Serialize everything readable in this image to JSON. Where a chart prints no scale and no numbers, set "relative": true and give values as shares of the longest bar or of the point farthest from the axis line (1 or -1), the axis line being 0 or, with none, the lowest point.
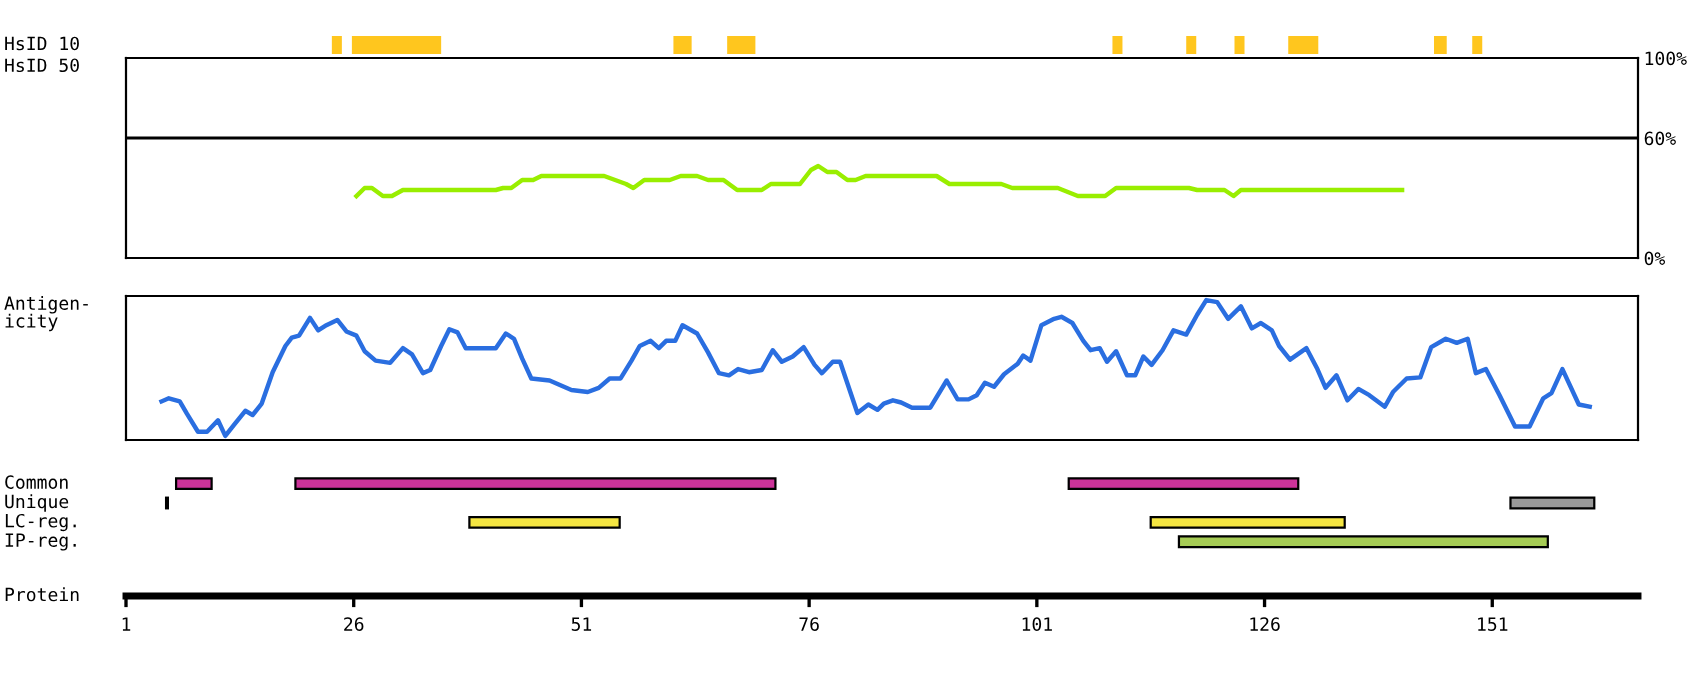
{
  "chart_data": [
    {
      "type": "bar",
      "orientation": "horizontal",
      "categories": [
        "HsID 10"
      ],
      "xlim": [
        1,
        167
      ],
      "tick_labels": false,
      "series": [
        {
          "color": "#ffc61e",
          "base": [
            23.6
          ],
          "values": [
            1.1
          ]
        },
        {
          "color": "#ffc61e",
          "base": [
            25.8
          ],
          "values": [
            9.8
          ]
        },
        {
          "color": "#ffc61e",
          "base": [
            61.1
          ],
          "values": [
            2.0
          ]
        },
        {
          "color": "#ffc61e",
          "base": [
            67.0
          ],
          "values": [
            3.1
          ]
        },
        {
          "color": "#ffc61e",
          "base": [
            109.3
          ],
          "values": [
            1.1
          ]
        },
        {
          "color": "#ffc61e",
          "base": [
            117.4
          ],
          "values": [
            1.1
          ]
        },
        {
          "color": "#ffc61e",
          "base": [
            122.7
          ],
          "values": [
            1.1
          ]
        },
        {
          "color": "#ffc61e",
          "base": [
            128.6
          ],
          "values": [
            3.3
          ]
        },
        {
          "color": "#ffc61e",
          "base": [
            144.6
          ],
          "values": [
            1.4
          ]
        },
        {
          "color": "#ffc61e",
          "base": [
            148.8
          ],
          "values": [
            1.1
          ]
        }
      ]
    },
    {
      "type": "line",
      "ylabel": "HsID 50",
      "xlim": [
        1,
        167
      ],
      "ylim": [
        0,
        100
      ],
      "tick_labels": "y",
      "yticks": [
        {
          "value": 0,
          "label": "0%"
        },
        {
          "value": 60,
          "label": "60%"
        },
        {
          "value": 100,
          "label": "100%"
        }
      ],
      "ref_lines": [
        {
          "axis": "y",
          "value": 60,
          "color": "#000000"
        }
      ],
      "series": [
        {
          "color": "#99ee00",
          "x": [
            26.3,
            27.2,
            28.0,
            29.2,
            30.2,
            31.4,
            41.6,
            42.4,
            43.3,
            44.5,
            45.7,
            46.6,
            53.5,
            55.9,
            56.7,
            57.9,
            60.7,
            61.9,
            63.7,
            64.9,
            66.6,
            68.1,
            70.8,
            71.8,
            75.0,
            76.2,
            77.0,
            78.0,
            79.0,
            80.2,
            81.1,
            82.2,
            90.0,
            91.4,
            97.1,
            98.3,
            103.3,
            105.5,
            108.5,
            109.7,
            117.7,
            118.6,
            121.6,
            122.6,
            123.4,
            141.1
          ],
          "values": [
            31,
            35,
            35,
            31,
            31,
            34,
            34,
            35,
            35,
            39,
            39,
            41,
            41,
            37,
            35,
            39,
            39,
            41,
            41,
            39,
            39,
            34,
            34,
            37,
            37,
            44,
            46,
            43,
            43,
            39,
            39,
            41,
            41,
            37,
            37,
            35,
            35,
            31,
            31,
            35,
            35,
            34,
            34,
            31,
            34,
            34
          ]
        }
      ]
    },
    {
      "type": "line",
      "ylabel": "Antigen-\nicity",
      "xlim": [
        1,
        167
      ],
      "relative": true,
      "tick_labels": false,
      "series": [
        {
          "color": "#2a6ee0",
          "x": [
            4.9,
            5.7,
            6.9,
            7.7,
            8.9,
            9.9,
            11.1,
            11.9,
            12.9,
            14.1,
            14.9,
            15.9,
            17.1,
            18.5,
            19.2,
            20.0,
            21.2,
            22.1,
            23.0,
            24.2,
            25.2,
            26.3,
            27.2,
            28.4,
            30.0,
            31.4,
            32.4,
            33.6,
            34.4,
            35.6,
            36.5,
            37.4,
            38.3,
            41.6,
            42.7,
            43.6,
            44.5,
            45.5,
            47.5,
            49.9,
            51.7,
            52.9,
            54.1,
            55.3,
            56.5,
            57.4,
            58.6,
            59.5,
            60.3,
            61.3,
            62.1,
            63.7,
            64.9,
            66.1,
            67.2,
            68.2,
            69.4,
            70.8,
            72.0,
            73.0,
            74.2,
            75.4,
            76.6,
            77.4,
            78.6,
            79.4,
            81.3,
            82.5,
            83.5,
            84.2,
            85.2,
            86.1,
            87.3,
            89.3,
            91.1,
            92.3,
            93.5,
            94.4,
            95.3,
            96.3,
            97.4,
            98.9,
            99.5,
            100.3,
            101.5,
            102.9,
            103.7,
            104.9,
            106.1,
            106.9,
            107.9,
            108.7,
            109.7,
            110.9,
            111.8,
            112.7,
            113.6,
            114.8,
            116.0,
            117.4,
            118.6,
            119.6,
            120.8,
            122.0,
            123.4,
            124.6,
            125.6,
            126.8,
            127.6,
            128.8,
            130.6,
            131.8,
            132.7,
            133.9,
            135.1,
            136.3,
            137.5,
            139.2,
            140.1,
            141.6,
            143.1,
            144.3,
            145.9,
            147.1,
            148.3,
            149.2,
            150.3,
            151.8,
            153.5,
            155.1,
            156.6,
            157.5,
            158.7,
            160.5,
            161.7
          ],
          "values": [
            0.254,
            0.277,
            0.254,
            0.162,
            0.031,
            0.031,
            0.115,
            0,
            0.085,
            0.185,
            0.154,
            0.238,
            0.469,
            0.662,
            0.723,
            0.738,
            0.869,
            0.777,
            0.815,
            0.854,
            0.769,
            0.738,
            0.623,
            0.554,
            0.538,
            0.646,
            0.6,
            0.462,
            0.485,
            0.662,
            0.785,
            0.762,
            0.646,
            0.646,
            0.754,
            0.715,
            0.569,
            0.423,
            0.408,
            0.338,
            0.323,
            0.354,
            0.423,
            0.423,
            0.554,
            0.662,
            0.7,
            0.646,
            0.7,
            0.7,
            0.815,
            0.754,
            0.615,
            0.462,
            0.446,
            0.492,
            0.469,
            0.485,
            0.631,
            0.546,
            0.585,
            0.654,
            0.523,
            0.462,
            0.546,
            0.546,
            0.169,
            0.231,
            0.192,
            0.238,
            0.262,
            0.246,
            0.208,
            0.208,
            0.408,
            0.269,
            0.269,
            0.3,
            0.392,
            0.362,
            0.454,
            0.531,
            0.592,
            0.554,
            0.815,
            0.862,
            0.877,
            0.831,
            0.7,
            0.631,
            0.646,
            0.546,
            0.623,
            0.446,
            0.446,
            0.585,
            0.523,
            0.631,
            0.777,
            0.746,
            0.892,
            1,
            0.985,
            0.862,
            0.954,
            0.792,
            0.831,
            0.777,
            0.662,
            0.562,
            0.646,
            0.492,
            0.354,
            0.446,
            0.262,
            0.346,
            0.3,
            0.215,
            0.323,
            0.423,
            0.431,
            0.654,
            0.715,
            0.685,
            0.715,
            0.462,
            0.492,
            0.3,
            0.069,
            0.069,
            0.277,
            0.315,
            0.492,
            0.231,
            0.215
          ]
        }
      ]
    },
    {
      "type": "bar",
      "orientation": "horizontal",
      "categories": [
        "Common",
        "Unique",
        "LC-reg.",
        "IP-reg."
      ],
      "xlabel": "Protein",
      "xlim": [
        1,
        167
      ],
      "tick_labels": "x",
      "xticks": [
        1,
        26,
        51,
        76,
        101,
        126,
        151
      ],
      "series": [
        {
          "colors": [
            "#cc3399",
            "#333333",
            "#f5e642",
            "#a6cc55"
          ],
          "base": [
            6.5,
            5.4,
            38.7,
            116.6
          ],
          "values": [
            3.9,
            0.2,
            16.5,
            40.5
          ]
        },
        {
          "colors": [
            "#cc3399",
            "#999999",
            "#f5e642",
            null
          ],
          "base": [
            19.6,
            153.0,
            113.5,
            null
          ],
          "values": [
            52.7,
            9.2,
            21.3,
            null
          ]
        },
        {
          "colors": [
            "#cc3399",
            null,
            null,
            null
          ],
          "base": [
            104.5,
            null,
            null,
            null
          ],
          "values": [
            25.2,
            null,
            null,
            null
          ]
        }
      ]
    }
  ]
}
